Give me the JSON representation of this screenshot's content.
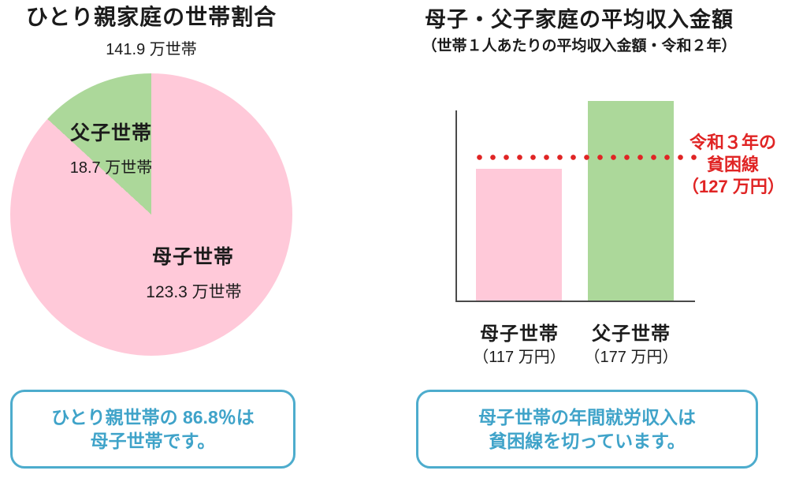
{
  "colors": {
    "pink": "#FFC9D9",
    "green": "#ACD89A",
    "red": "#E02424",
    "blue_text": "#3FA3C9",
    "blue_border": "#4DACCD",
    "axis": "#4A4A4A"
  },
  "left_panel": {
    "title": "ひとり親家庭の世帯割合",
    "subtitle": "141.9 万世帯",
    "pie": {
      "slices": [
        {
          "name": "mother-child",
          "label": "母子世帯",
          "value_label": "123.3 万世帯",
          "value": 123.3,
          "color": "#FFC9D9"
        },
        {
          "name": "father-child",
          "label": "父子世帯",
          "value_label": "18.7 万世帯",
          "value": 18.7,
          "color": "#ACD89A"
        }
      ]
    },
    "callout": {
      "line1": "ひとり親世帯の 86.8％は",
      "line2": "母子世帯です。"
    }
  },
  "right_panel": {
    "title": "母子・父子家庭の平均収入金額",
    "subtitle": "（世帯１人あたりの平均収入金額・令和２年）",
    "bars": [
      {
        "name": "mother-child",
        "label": "母子世帯",
        "value_label": "（117 万円）",
        "value": 117,
        "color": "#FFC9D9"
      },
      {
        "name": "father-child",
        "label": "父子世帯",
        "value_label": "（177 万円）",
        "value": 177,
        "color": "#ACD89A"
      }
    ],
    "poverty_line": {
      "value": 127,
      "label_line1": "令和３年の",
      "label_line2": "貧困線",
      "label_line3": "（127 万円）"
    },
    "callout": {
      "line1": "母子世帯の年間就労収入は",
      "line2": "貧困線を切っています。"
    }
  },
  "chart_data": [
    {
      "type": "pie",
      "title": "ひとり親家庭の世帯割合",
      "subtitle": "141.9 万世帯",
      "labels": [
        "母子世帯",
        "父子世帯"
      ],
      "values": [
        123.3,
        18.7
      ],
      "unit": "万世帯",
      "colors": [
        "#FFC9D9",
        "#ACD89A"
      ],
      "start_angle_deg": 0,
      "annotation": "ひとり親世帯の 86.8％は母子世帯です。"
    },
    {
      "type": "bar",
      "title": "母子・父子家庭の平均収入金額",
      "subtitle": "（世帯１人あたりの平均収入金額・令和２年）",
      "categories": [
        "母子世帯",
        "父子世帯"
      ],
      "values": [
        117,
        177
      ],
      "unit": "万円",
      "colors": [
        "#FFC9D9",
        "#ACD89A"
      ],
      "reference_line": {
        "label": "令和３年の貧困線（127 万円）",
        "value": 127,
        "color": "#E02424",
        "style": "dotted"
      },
      "ylim": [
        0,
        185
      ],
      "grid": false,
      "legend": false,
      "annotation": "母子世帯の年間就労収入は貧困線を切っています。"
    }
  ]
}
